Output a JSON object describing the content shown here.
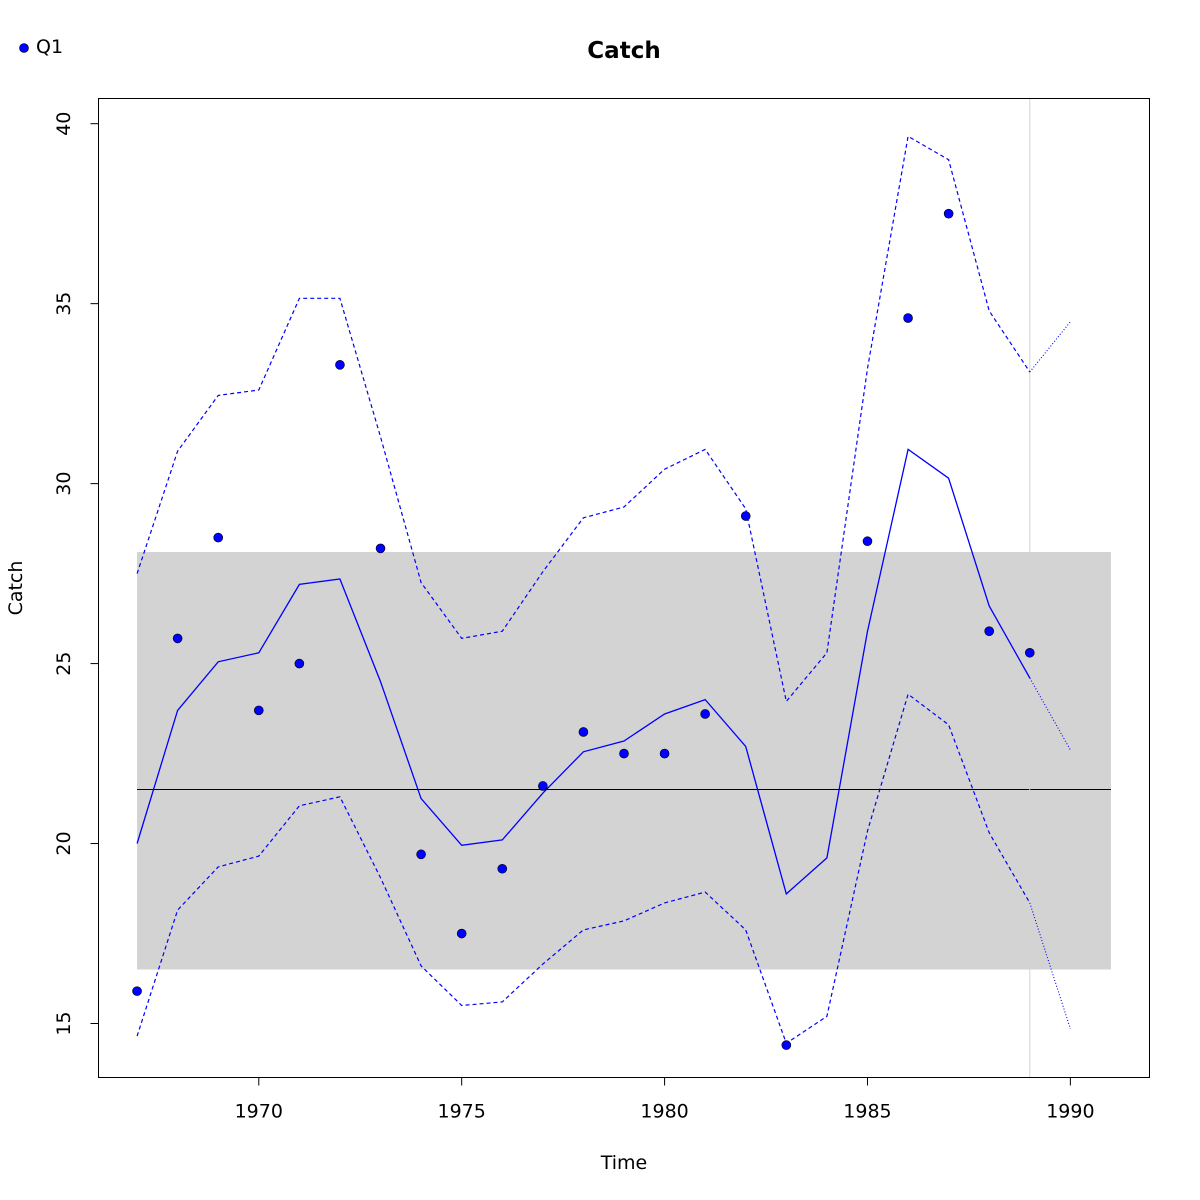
{
  "chart_data": {
    "type": "scatter",
    "title": "Catch",
    "xlabel": "Time",
    "ylabel": "Catch",
    "xlim": [
      1966.05,
      1991.95
    ],
    "ylim": [
      13.5,
      40.7
    ],
    "x_ticks": [
      "1970",
      "1975",
      "1980",
      "1985",
      "1990"
    ],
    "y_ticks": [
      "15",
      "20",
      "25",
      "30",
      "35",
      "40"
    ],
    "legend": {
      "position": "top-left",
      "entries": [
        {
          "label": "Q1",
          "color": "#0000ff"
        }
      ]
    },
    "grid": false,
    "observed": {
      "name": "Q1",
      "x": [
        1967,
        1968,
        1969,
        1970,
        1971,
        1972,
        1973,
        1974,
        1975,
        1976,
        1977,
        1978,
        1979,
        1980,
        1981,
        1982,
        1983,
        1984,
        1985,
        1986,
        1987,
        1988,
        1989
      ],
      "y": [
        15.9,
        25.7,
        28.5,
        23.7,
        25.0,
        33.3,
        28.2,
        19.7,
        17.5,
        19.3,
        21.6,
        23.1,
        22.5,
        22.5,
        23.6,
        29.1,
        14.4,
        null,
        28.4,
        34.6,
        37.5,
        25.9,
        25.3
      ]
    },
    "fitted": {
      "x": [
        1967,
        1968,
        1969,
        1970,
        1971,
        1972,
        1973,
        1974,
        1975,
        1976,
        1977,
        1978,
        1979,
        1980,
        1981,
        1982,
        1983,
        1984,
        1985,
        1986,
        1987,
        1988,
        1989
      ],
      "y": [
        20.0,
        23.7,
        25.05,
        25.3,
        27.2,
        27.35,
        24.5,
        21.25,
        19.95,
        20.1,
        21.4,
        22.55,
        22.85,
        23.6,
        24.0,
        22.7,
        18.6,
        19.6,
        25.9,
        30.95,
        30.15,
        26.6,
        24.6
      ]
    },
    "upper": {
      "x": [
        1967,
        1968,
        1969,
        1970,
        1971,
        1972,
        1973,
        1974,
        1975,
        1976,
        1977,
        1978,
        1979,
        1980,
        1981,
        1982,
        1983,
        1984,
        1985,
        1986,
        1987,
        1988,
        1989
      ],
      "y": [
        27.5,
        30.9,
        32.45,
        32.6,
        35.15,
        35.15,
        31.3,
        27.25,
        25.7,
        25.9,
        27.55,
        29.05,
        29.35,
        30.4,
        30.95,
        29.3,
        23.95,
        25.3,
        33.2,
        39.65,
        39.0,
        34.8,
        33.1
      ]
    },
    "lower": {
      "x": [
        1967,
        1968,
        1969,
        1970,
        1971,
        1972,
        1973,
        1974,
        1975,
        1976,
        1977,
        1978,
        1979,
        1980,
        1981,
        1982,
        1983,
        1984,
        1985,
        1986,
        1987,
        1988,
        1989
      ],
      "y": [
        14.65,
        18.15,
        19.35,
        19.65,
        21.05,
        21.3,
        19.05,
        16.6,
        15.5,
        15.6,
        16.65,
        17.6,
        17.85,
        18.35,
        18.65,
        17.6,
        14.45,
        15.2,
        20.35,
        24.15,
        23.3,
        20.3,
        18.35
      ]
    },
    "forecast": {
      "x": [
        1989,
        1990
      ],
      "fitted": [
        24.6,
        22.6
      ],
      "upper": [
        33.1,
        34.5
      ],
      "lower": [
        18.35,
        14.85
      ]
    },
    "reference_band": {
      "x_range": [
        1967,
        1991
      ],
      "y_range": [
        16.5,
        28.1
      ]
    },
    "mean_line": 21.5,
    "cutoff_x": 1989
  }
}
